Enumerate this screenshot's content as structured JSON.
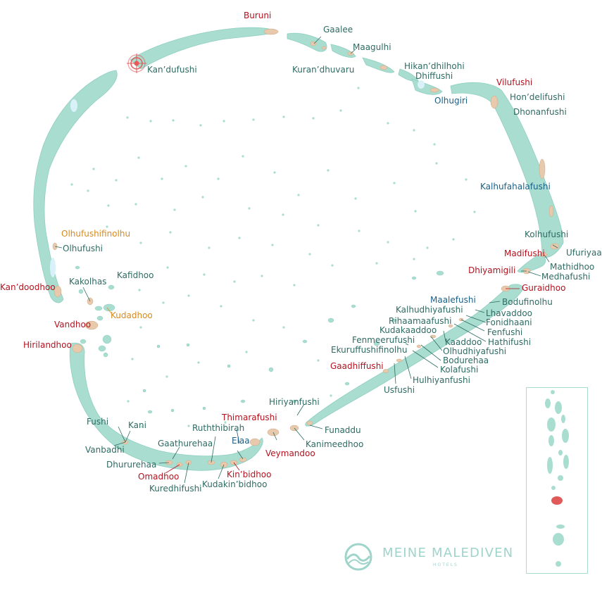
{
  "colors": {
    "reef": "#a9ddd0",
    "reef_stroke": "#8fcfc1",
    "island": "#e9c9ac",
    "lagoon_light": "#d9f1f8",
    "label_green": "#2e6b63",
    "label_red": "#b3121f",
    "label_orange": "#d98a1e",
    "label_blue": "#1a5f86",
    "marker": "#e8595a",
    "inset_highlight": "#e05a5a"
  },
  "labels": [
    {
      "id": "buruni",
      "text": "Buruni",
      "color": "red"
    },
    {
      "id": "gaalee",
      "text": "Gaalee",
      "color": "green"
    },
    {
      "id": "maagulhi",
      "text": "Maagulhi",
      "color": "green"
    },
    {
      "id": "kurandhuvaru",
      "text": "Kuran’dhuvaru",
      "color": "green"
    },
    {
      "id": "hikandhilhohi",
      "text": "Hikan’dhilhohi",
      "color": "green"
    },
    {
      "id": "dhiffushi",
      "text": "Dhiffushi",
      "color": "green"
    },
    {
      "id": "olhugiri",
      "text": "Olhugiri",
      "color": "blue"
    },
    {
      "id": "vilufushi",
      "text": "Vilufushi",
      "color": "red"
    },
    {
      "id": "hondelifushi",
      "text": "Hon’delifushi",
      "color": "green"
    },
    {
      "id": "dhonanfushi",
      "text": "Dhonanfushi",
      "color": "green"
    },
    {
      "id": "kandufushi",
      "text": "Kan’dufushi",
      "color": "green"
    },
    {
      "id": "kalhufahalafushi",
      "text": "Kalhufahalafushi",
      "color": "blue"
    },
    {
      "id": "olhufushifinolhu",
      "text": "Olhufushifinolhu",
      "color": "orange"
    },
    {
      "id": "olhufushi",
      "text": "Olhufushi",
      "color": "green"
    },
    {
      "id": "kolhufushi",
      "text": "Kolhufushi",
      "color": "green"
    },
    {
      "id": "madifushi",
      "text": "Madifushi",
      "color": "red"
    },
    {
      "id": "ufuriyaa",
      "text": "Ufuriyaa",
      "color": "green"
    },
    {
      "id": "mathidhoo",
      "text": "Mathidhoo",
      "color": "green"
    },
    {
      "id": "dhiyamigili",
      "text": "Dhiyamigili",
      "color": "red"
    },
    {
      "id": "medhafushi",
      "text": "Medhafushi",
      "color": "green"
    },
    {
      "id": "kafidhoo",
      "text": "Kafidhoo",
      "color": "green"
    },
    {
      "id": "kandoodhoo",
      "text": "Kan’doodhoo",
      "color": "red"
    },
    {
      "id": "kakolhas",
      "text": "Kakolhas",
      "color": "green"
    },
    {
      "id": "guraidhoo",
      "text": "Guraidhoo",
      "color": "red"
    },
    {
      "id": "maalefushi",
      "text": "Maalefushi",
      "color": "blue"
    },
    {
      "id": "bodufinolhu",
      "text": "Bodufinolhu",
      "color": "green"
    },
    {
      "id": "kudadhoo",
      "text": "Kudadhoo",
      "color": "orange"
    },
    {
      "id": "kalhudhiyafushi",
      "text": "Kalhudhiyafushi",
      "color": "green"
    },
    {
      "id": "lhavaddoo",
      "text": "Lhavaddoo",
      "color": "green"
    },
    {
      "id": "vandhoo",
      "text": "Vandhoo",
      "color": "red"
    },
    {
      "id": "rihaamaafushi",
      "text": "Rihaamaafushi",
      "color": "green"
    },
    {
      "id": "fonidhaani",
      "text": "Fonidhaani",
      "color": "green"
    },
    {
      "id": "kudakaaddoo",
      "text": "Kudakaaddoo",
      "color": "green"
    },
    {
      "id": "fenfushi",
      "text": "Fenfushi",
      "color": "green"
    },
    {
      "id": "fenmeerufushi",
      "text": "Fenmeerufushi",
      "color": "green"
    },
    {
      "id": "kaaddoo",
      "text": "Kaaddoo",
      "color": "green"
    },
    {
      "id": "hathifushi",
      "text": "Hathifushi",
      "color": "green"
    },
    {
      "id": "hirilandhoo",
      "text": "Hirilandhoo",
      "color": "red"
    },
    {
      "id": "ekuruffushifinolhu",
      "text": "Ekuruffushifinolhu",
      "color": "green"
    },
    {
      "id": "olhudhiyafushi",
      "text": "Olhudhiyafushi",
      "color": "green"
    },
    {
      "id": "bodurehaa",
      "text": "Bodurehaa",
      "color": "green"
    },
    {
      "id": "gaadhiffushi",
      "text": "Gaadhiffushi",
      "color": "red"
    },
    {
      "id": "kolafushi",
      "text": "Kolafushi",
      "color": "green"
    },
    {
      "id": "hulhiyanfushi",
      "text": "Hulhiyanfushi",
      "color": "green"
    },
    {
      "id": "usfushi",
      "text": "Usfushi",
      "color": "green"
    },
    {
      "id": "hiriyanfushi",
      "text": "Hiriyanfushi",
      "color": "green"
    },
    {
      "id": "thimarafushi",
      "text": "Thimarafushi",
      "color": "red"
    },
    {
      "id": "fushi",
      "text": "Fushi",
      "color": "green"
    },
    {
      "id": "kani",
      "text": "Kani",
      "color": "green"
    },
    {
      "id": "ruththibirah",
      "text": "Ruththibirah",
      "color": "green"
    },
    {
      "id": "funaddu",
      "text": "Funaddu",
      "color": "green"
    },
    {
      "id": "elaa",
      "text": "Elaa",
      "color": "blue"
    },
    {
      "id": "kanimeedhoo",
      "text": "Kanimeedhoo",
      "color": "green"
    },
    {
      "id": "gaathurehaa",
      "text": "Gaathurehaa",
      "color": "green"
    },
    {
      "id": "vanbadhi",
      "text": "Vanbadhi",
      "color": "green"
    },
    {
      "id": "veymandoo",
      "text": "Veymandoo",
      "color": "red"
    },
    {
      "id": "dhururehaa",
      "text": "Dhururehaa",
      "color": "green"
    },
    {
      "id": "kinbidhoo",
      "text": "Kin’bidhoo",
      "color": "red"
    },
    {
      "id": "omadhoo",
      "text": "Omadhoo",
      "color": "red"
    },
    {
      "id": "kudakinbidhoo",
      "text": "Kudakin’bidhoo",
      "color": "green"
    },
    {
      "id": "kuredhifushi",
      "text": "Kuredhifushi",
      "color": "green"
    }
  ],
  "logo": {
    "name": "MEINE MALEDIVEN",
    "sub": "HOTELS"
  },
  "icons": {
    "marker": "target-marker-icon",
    "logo": "wave-logo-icon"
  }
}
